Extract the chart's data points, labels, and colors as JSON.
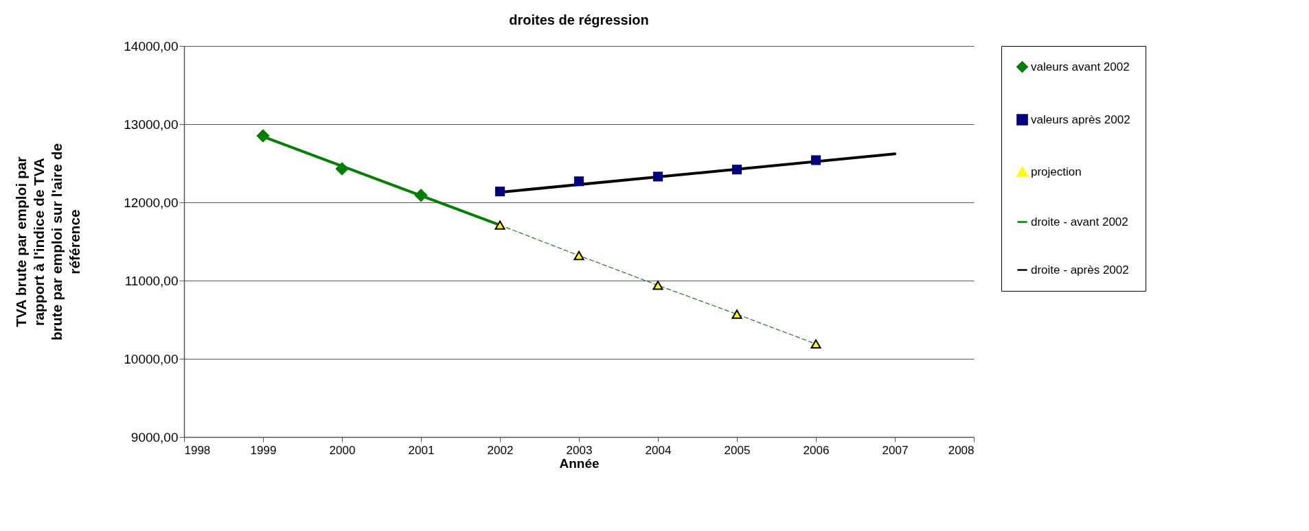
{
  "chart_data": {
    "type": "line",
    "title": "droites de régression",
    "xlabel": "Année",
    "ylabel": "TVA brute par emploi par rapport à l'indice de TVA brute par emploi sur l'aire de référence",
    "xlim": [
      1998,
      2008
    ],
    "xticks": [
      1998,
      1999,
      2000,
      2001,
      2002,
      2003,
      2004,
      2005,
      2006,
      2007,
      2008
    ],
    "ylim": [
      9000,
      14000
    ],
    "yticks": [
      {
        "value": 9000,
        "label": "9000,00"
      },
      {
        "value": 10000,
        "label": "10000,00"
      },
      {
        "value": 11000,
        "label": "11000,00"
      },
      {
        "value": 12000,
        "label": "12000,00"
      },
      {
        "value": 13000,
        "label": "13000,00"
      },
      {
        "value": 14000,
        "label": "14000,00"
      }
    ],
    "grid": "y",
    "legend": "right",
    "series": [
      {
        "name": "valeurs avant 2002",
        "type": "scatter",
        "marker": "diamond",
        "color": "#008000",
        "x": [
          1999,
          2000,
          2001
        ],
        "values": [
          12850,
          12430,
          12090
        ]
      },
      {
        "name": "valeurs après 2002",
        "type": "scatter",
        "marker": "square",
        "color": "#000080",
        "x": [
          2002,
          2003,
          2004,
          2005,
          2006
        ],
        "values": [
          12140,
          12270,
          12330,
          12420,
          12540
        ]
      },
      {
        "name": "projection",
        "marker": "triangle",
        "line_style": "dashed",
        "color": "#ffff00",
        "x": [
          2002,
          2003,
          2004,
          2005,
          2006
        ],
        "values": [
          11710,
          11320,
          10940,
          10570,
          10190
        ]
      },
      {
        "name": "droite - avant 2002",
        "line_style": "solid",
        "marker": "none",
        "color": "#008000",
        "x": [
          1999,
          2002
        ],
        "values": [
          12840,
          11710
        ]
      },
      {
        "name": "droite - après 2002",
        "line_style": "solid",
        "marker": "none",
        "color": "#000000",
        "x": [
          2002,
          2007
        ],
        "values": [
          12130,
          12620
        ]
      }
    ]
  }
}
